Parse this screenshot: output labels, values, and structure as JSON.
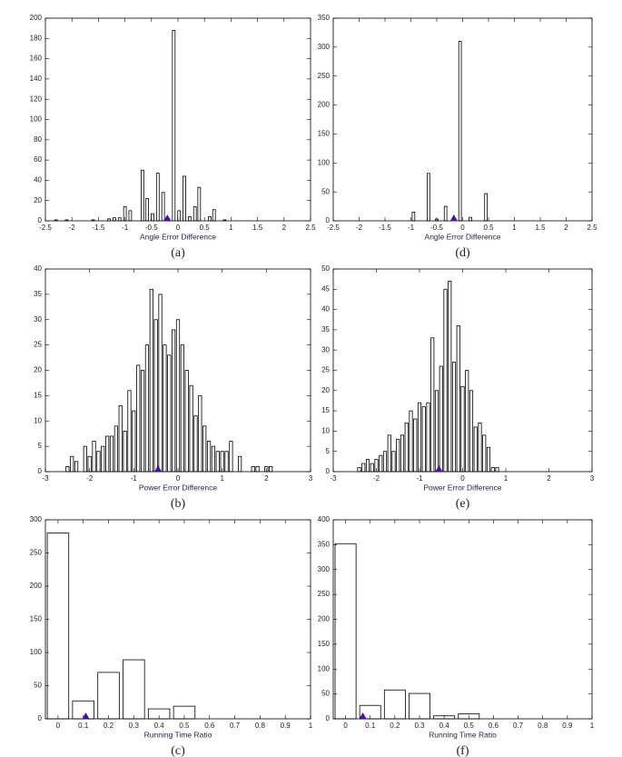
{
  "chart_data": [
    {
      "type": "bar",
      "caption": "(a)",
      "x_label": "Angle Error Difference",
      "x": [
        -2.3,
        -2.1,
        -1.6,
        -1.3,
        -1.2,
        -1.1,
        -1.0,
        -0.9,
        -0.67,
        -0.58,
        -0.48,
        -0.38,
        -0.28,
        -0.18,
        -0.08,
        0.02,
        0.12,
        0.22,
        0.32,
        0.4,
        0.6,
        0.68,
        0.88
      ],
      "values": [
        1,
        1,
        1,
        2,
        3,
        3,
        14,
        10,
        50,
        22,
        7,
        47,
        28,
        2,
        188,
        10,
        44,
        4,
        14,
        33,
        4,
        11,
        1
      ],
      "color": "#ffffff",
      "edge_color": "#000000",
      "xlim": [
        -2.5,
        2.5
      ],
      "xticks": [
        -2.5,
        -2,
        -1.5,
        -1,
        -0.5,
        0,
        0.5,
        1,
        1.5,
        2,
        2.5
      ],
      "ylim": [
        0,
        200
      ],
      "yticks": [
        0,
        20,
        40,
        60,
        80,
        100,
        120,
        140,
        160,
        180,
        200
      ],
      "marker": {
        "x": -0.2,
        "color": "#4a0fa8"
      }
    },
    {
      "type": "bar",
      "caption": "(d)",
      "x_label": "Angle Error Difference",
      "x": [
        -0.95,
        -0.66,
        -0.5,
        -0.33,
        -0.05,
        0.15,
        0.45
      ],
      "values": [
        15,
        82,
        3,
        25,
        310,
        6,
        47
      ],
      "color": "#ffffff",
      "edge_color": "#000000",
      "xlim": [
        -2.5,
        2.5
      ],
      "xticks": [
        -2.5,
        -2,
        -1.5,
        -1,
        -0.5,
        0,
        0.5,
        1,
        1.5,
        2,
        2.5
      ],
      "ylim": [
        0,
        350
      ],
      "yticks": [
        0,
        50,
        100,
        150,
        200,
        250,
        300,
        350
      ],
      "marker": {
        "x": -0.17,
        "color": "#4a0fa8"
      }
    },
    {
      "type": "bar",
      "caption": "(b)",
      "x_label": "Power Error Difference",
      "x": [
        -2.5,
        -2.4,
        -2.3,
        -2.1,
        -2.0,
        -1.9,
        -1.8,
        -1.7,
        -1.6,
        -1.5,
        -1.4,
        -1.3,
        -1.2,
        -1.1,
        -1.0,
        -0.9,
        -0.8,
        -0.7,
        -0.6,
        -0.5,
        -0.4,
        -0.3,
        -0.2,
        -0.1,
        0.0,
        0.1,
        0.2,
        0.3,
        0.4,
        0.5,
        0.6,
        0.7,
        0.8,
        0.9,
        1.0,
        1.1,
        1.2,
        1.4,
        1.7,
        1.8,
        2.0,
        2.1
      ],
      "values": [
        1,
        3,
        2,
        5,
        3,
        6,
        4,
        5,
        7,
        7,
        9,
        13,
        8,
        16,
        12,
        21,
        20,
        25,
        36,
        30,
        35,
        25,
        23,
        28,
        30,
        25,
        20,
        17,
        11,
        15,
        9,
        6,
        5,
        4,
        4,
        4,
        6,
        3,
        1,
        1,
        1,
        1
      ],
      "color": "#ffffff",
      "edge_color": "#000000",
      "xlim": [
        -3,
        3
      ],
      "xticks": [
        -3,
        -2,
        -1,
        0,
        1,
        2,
        3
      ],
      "ylim": [
        0,
        40
      ],
      "yticks": [
        0,
        5,
        10,
        15,
        20,
        25,
        30,
        35,
        40
      ],
      "marker": {
        "x": -0.45,
        "color": "#4a0fa8"
      }
    },
    {
      "type": "bar",
      "caption": "(e)",
      "x_label": "Power Error Difference",
      "x": [
        -2.4,
        -2.3,
        -2.2,
        -2.1,
        -2.0,
        -1.9,
        -1.8,
        -1.7,
        -1.6,
        -1.5,
        -1.4,
        -1.3,
        -1.2,
        -1.1,
        -1.0,
        -0.9,
        -0.8,
        -0.7,
        -0.6,
        -0.5,
        -0.4,
        -0.3,
        -0.2,
        -0.1,
        0.0,
        0.1,
        0.2,
        0.3,
        0.4,
        0.5,
        0.6,
        0.7,
        0.8
      ],
      "values": [
        1,
        2,
        3,
        2,
        3,
        4,
        5,
        9,
        5,
        8,
        9,
        12,
        15,
        13,
        17,
        16,
        17,
        33,
        20,
        26,
        45,
        47,
        27,
        36,
        21,
        25,
        20,
        11,
        12,
        9,
        6,
        1,
        1
      ],
      "color": "#ffffff",
      "edge_color": "#000000",
      "xlim": [
        -3,
        3
      ],
      "xticks": [
        -3,
        -2,
        -1,
        0,
        1,
        2,
        3
      ],
      "ylim": [
        0,
        50
      ],
      "yticks": [
        0,
        5,
        10,
        15,
        20,
        25,
        30,
        35,
        40,
        45,
        50
      ],
      "marker": {
        "x": -0.55,
        "color": "#4a0fa8"
      }
    },
    {
      "type": "bar",
      "caption": "(c)",
      "x_label": "Running Time Ratio",
      "x": [
        0,
        0.1,
        0.2,
        0.3,
        0.4,
        0.5
      ],
      "values": [
        280,
        27,
        70,
        89,
        15,
        19
      ],
      "color": "#ffffff",
      "edge_color": "#000000",
      "xlim": [
        -0.05,
        1
      ],
      "xticks": [
        0,
        0.1,
        0.2,
        0.3,
        0.4,
        0.5,
        0.6,
        0.7,
        0.8,
        0.9,
        1
      ],
      "ylim": [
        0,
        300
      ],
      "yticks": [
        0,
        50,
        100,
        150,
        200,
        250,
        300
      ],
      "marker": {
        "x": 0.11,
        "color": "#4a0fa8"
      }
    },
    {
      "type": "bar",
      "caption": "(f)",
      "x_label": "Running Time Ratio",
      "x": [
        0,
        0.1,
        0.2,
        0.3,
        0.4,
        0.5
      ],
      "values": [
        352,
        27,
        58,
        51,
        6,
        10
      ],
      "color": "#ffffff",
      "edge_color": "#000000",
      "xlim": [
        -0.05,
        1
      ],
      "xticks": [
        0,
        0.1,
        0.2,
        0.3,
        0.4,
        0.5,
        0.6,
        0.7,
        0.8,
        0.9,
        1
      ],
      "ylim": [
        0,
        400
      ],
      "yticks": [
        0,
        50,
        100,
        150,
        200,
        250,
        300,
        350,
        400
      ],
      "marker": {
        "x": 0.07,
        "color": "#4a0fa8"
      }
    }
  ]
}
